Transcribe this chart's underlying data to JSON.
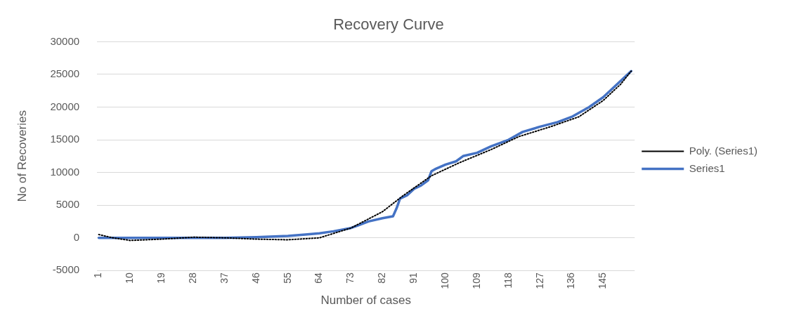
{
  "chart_data": {
    "type": "line",
    "title": "Recovery Curve",
    "xlabel": "Number of cases",
    "ylabel": "No of Recoveries",
    "xlim": [
      0.5,
      154
    ],
    "xticks": [
      1,
      10,
      19,
      28,
      37,
      46,
      55,
      64,
      73,
      82,
      91,
      100,
      109,
      118,
      127,
      136,
      145
    ],
    "ylim": [
      -5000,
      30000
    ],
    "yticks": [
      -5000,
      0,
      5000,
      10000,
      15000,
      20000,
      25000,
      30000
    ],
    "grid": "y",
    "legend": "right",
    "marker": "none",
    "series": [
      {
        "name": "Series1",
        "color": "#4472c4",
        "line_style": "solid",
        "x": [
          1,
          10,
          19,
          28,
          37,
          46,
          55,
          60,
          64,
          68,
          73,
          78,
          82,
          85,
          86,
          87,
          89,
          91,
          93,
          95,
          96,
          97,
          100,
          103,
          105,
          109,
          113,
          118,
          122,
          127,
          132,
          136,
          141,
          145,
          148,
          151,
          153
        ],
        "values": [
          0,
          0,
          0,
          0,
          0,
          100,
          300,
          500,
          700,
          1000,
          1500,
          2500,
          3000,
          3300,
          4500,
          6000,
          6500,
          7500,
          8000,
          8800,
          10200,
          10500,
          11200,
          11700,
          12500,
          13000,
          14000,
          15000,
          16200,
          17000,
          17700,
          18500,
          20000,
          21500,
          23000,
          24500,
          25500
        ]
      },
      {
        "name": "Poly. (Series1)",
        "color": "#000000",
        "line_style": "dotted",
        "x": [
          1,
          5,
          10,
          19,
          28,
          37,
          46,
          55,
          64,
          73,
          82,
          88,
          96,
          104,
          113,
          121,
          130,
          138,
          145,
          150,
          153
        ],
        "values": [
          500,
          0,
          -400,
          -200,
          100,
          0,
          -200,
          -300,
          0,
          1500,
          4000,
          6500,
          9500,
          11500,
          13500,
          15500,
          17000,
          18500,
          21000,
          23500,
          25500
        ]
      }
    ]
  }
}
